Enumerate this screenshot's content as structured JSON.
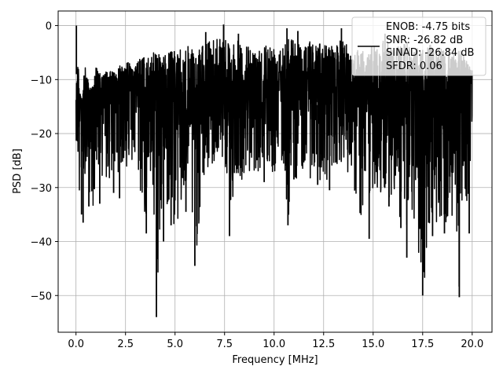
{
  "chart_data": {
    "type": "line",
    "title": "",
    "xlabel": "Frequency [MHz]",
    "ylabel": "PSD [dB]",
    "xlim": [
      -0.9,
      21.0
    ],
    "ylim": [
      -56.8,
      2.7
    ],
    "xticks": [
      0.0,
      2.5,
      5.0,
      7.5,
      10.0,
      12.5,
      15.0,
      17.5,
      20.0
    ],
    "xtick_labels": [
      "0.0",
      "2.5",
      "5.0",
      "7.5",
      "10.0",
      "12.5",
      "15.0",
      "17.5",
      "20.0"
    ],
    "yticks": [
      0,
      -10,
      -20,
      -30,
      -40,
      -50
    ],
    "ytick_labels": [
      "0",
      "−10",
      "−20",
      "−30",
      "−40",
      "−50"
    ],
    "grid": true,
    "legend_position": "top-right",
    "legend": {
      "lines": [
        "ENOB: -4.75 bits",
        "SNR: -26.82 dB",
        "SINAD: -26.84 dB",
        "SFDR: 0.06"
      ]
    },
    "series": [
      {
        "color": "#000000",
        "x": [
          0.0,
          0.05,
          0.1,
          0.15,
          0.2,
          0.3,
          0.35,
          0.4,
          0.5,
          0.7,
          0.9,
          1.0,
          1.3,
          1.5,
          2.0,
          2.3,
          2.5,
          3.0,
          3.3,
          3.6,
          3.8,
          4.05,
          4.3,
          4.4,
          4.6,
          5.0,
          5.5,
          5.6,
          6.0,
          6.5,
          7.0,
          7.5,
          7.8,
          8.0,
          8.5,
          9.0,
          9.5,
          10.0,
          10.5,
          10.7,
          11.0,
          11.5,
          12.0,
          12.5,
          13.0,
          13.5,
          14.0,
          14.5,
          14.8,
          15.0,
          15.5,
          16.0,
          16.5,
          16.7,
          17.0,
          17.5,
          18.0,
          18.5,
          18.8,
          19.0,
          19.3,
          19.6,
          19.9,
          20.0
        ],
        "y_upper": [
          0.0,
          -3.0,
          -5.0,
          -6.5,
          -12.0,
          -15.0,
          -13.0,
          -8.0,
          -7.0,
          -12.0,
          -10.0,
          -7.0,
          -9.0,
          -8.0,
          -8.0,
          -6.0,
          -6.0,
          -7.0,
          -5.0,
          -5.5,
          -5.0,
          -4.0,
          -4.0,
          -5.0,
          -4.5,
          -4.0,
          -4.0,
          -3.0,
          -4.5,
          -3.0,
          -1.0,
          -0.2,
          -3.0,
          -2.0,
          -3.0,
          -4.0,
          -2.5,
          -3.0,
          -1.5,
          -1.0,
          -2.0,
          -3.0,
          -2.0,
          -3.0,
          -3.0,
          -2.0,
          -4.0,
          -3.0,
          -4.0,
          -3.0,
          -2.0,
          -3.0,
          -3.0,
          -2.5,
          -3.5,
          -3.5,
          -3.0,
          -4.0,
          -3.5,
          -5.0,
          -4.0,
          -4.5,
          -7.0,
          -7.0
        ],
        "y_lower": [
          -21.0,
          -23.0,
          -26.0,
          -36.0,
          -36.0,
          -28.0,
          -33.0,
          -28.0,
          -27.0,
          -32.0,
          -34.0,
          -27.0,
          -28.0,
          -30.0,
          -28.0,
          -26.0,
          -27.0,
          -26.0,
          -33.0,
          -38.5,
          -30.0,
          -54.0,
          -40.0,
          -28.0,
          -34.0,
          -38.0,
          -35.0,
          -29.0,
          -44.5,
          -28.0,
          -26.0,
          -25.0,
          -39.0,
          -27.0,
          -29.0,
          -27.0,
          -27.0,
          -28.0,
          -27.0,
          -37.0,
          -29.0,
          -27.0,
          -29.0,
          -30.0,
          -26.0,
          -25.0,
          -30.0,
          -39.5,
          -34.0,
          -30.0,
          -33.0,
          -31.0,
          -38.0,
          -43.0,
          -36.0,
          -50.0,
          -36.0,
          -37.0,
          -38.5,
          -37.0,
          -50.0,
          -38.0,
          -28.0,
          -17.0
        ]
      }
    ],
    "spike_minima": [
      {
        "x": 0.28,
        "y": -35.0
      },
      {
        "x": 0.36,
        "y": -36.5
      },
      {
        "x": 0.65,
        "y": -33.5
      },
      {
        "x": 1.2,
        "y": -33.0
      },
      {
        "x": 1.9,
        "y": -31.0
      },
      {
        "x": 2.2,
        "y": -32.0
      },
      {
        "x": 3.55,
        "y": -38.5
      },
      {
        "x": 4.06,
        "y": -54.0
      },
      {
        "x": 4.42,
        "y": -40.0
      },
      {
        "x": 4.8,
        "y": -37.0
      },
      {
        "x": 5.55,
        "y": -34.5
      },
      {
        "x": 6.0,
        "y": -44.5
      },
      {
        "x": 7.75,
        "y": -39.0
      },
      {
        "x": 9.5,
        "y": -29.0
      },
      {
        "x": 10.7,
        "y": -37.0
      },
      {
        "x": 11.0,
        "y": -28.5
      },
      {
        "x": 12.2,
        "y": -29.5
      },
      {
        "x": 12.8,
        "y": -30.5
      },
      {
        "x": 14.8,
        "y": -39.5
      },
      {
        "x": 15.8,
        "y": -33.5
      },
      {
        "x": 16.4,
        "y": -37.5
      },
      {
        "x": 16.7,
        "y": -43.0
      },
      {
        "x": 17.5,
        "y": -50.0
      },
      {
        "x": 17.8,
        "y": -36.5
      },
      {
        "x": 18.0,
        "y": -39.0
      },
      {
        "x": 18.6,
        "y": -38.5
      },
      {
        "x": 19.35,
        "y": -50.3
      },
      {
        "x": 19.85,
        "y": -38.5
      }
    ],
    "spike_maxima": [
      {
        "x": 0.02,
        "y": 0.0
      },
      {
        "x": 7.45,
        "y": 0.2
      },
      {
        "x": 10.65,
        "y": -0.5
      },
      {
        "x": 13.4,
        "y": -0.5
      },
      {
        "x": 6.55,
        "y": -1.2
      },
      {
        "x": 8.2,
        "y": -1.5
      },
      {
        "x": 11.2,
        "y": -1.0
      },
      {
        "x": 15.6,
        "y": -1.5
      }
    ]
  }
}
